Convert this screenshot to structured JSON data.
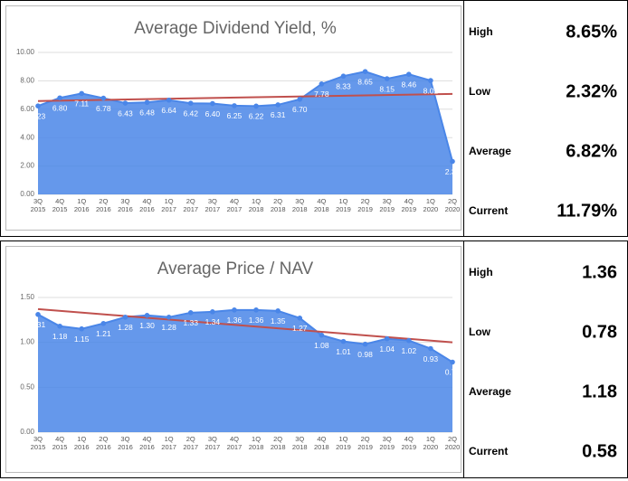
{
  "chart_data": [
    {
      "type": "area",
      "title": "Average Dividend Yield, %",
      "categories": [
        [
          "3Q",
          "2015"
        ],
        [
          "4Q",
          "2015"
        ],
        [
          "1Q",
          "2016"
        ],
        [
          "2Q",
          "2016"
        ],
        [
          "3Q",
          "2016"
        ],
        [
          "4Q",
          "2016"
        ],
        [
          "1Q",
          "2017"
        ],
        [
          "2Q",
          "2017"
        ],
        [
          "3Q",
          "2017"
        ],
        [
          "4Q",
          "2017"
        ],
        [
          "1Q",
          "2018"
        ],
        [
          "2Q",
          "2018"
        ],
        [
          "3Q",
          "2018"
        ],
        [
          "4Q",
          "2018"
        ],
        [
          "1Q",
          "2019"
        ],
        [
          "2Q",
          "2019"
        ],
        [
          "3Q",
          "2019"
        ],
        [
          "4Q",
          "2019"
        ],
        [
          "1Q",
          "2020"
        ],
        [
          "2Q",
          "2020"
        ]
      ],
      "values": [
        6.23,
        6.8,
        7.11,
        6.78,
        6.43,
        6.48,
        6.64,
        6.42,
        6.4,
        6.25,
        6.22,
        6.31,
        6.7,
        7.78,
        8.33,
        8.65,
        8.15,
        8.46,
        8.02,
        2.32
      ],
      "value_labels": [
        "6.23",
        "6.80",
        "7.11",
        "6.78",
        "6.43",
        "6.48",
        "6.64",
        "6.42",
        "6.40",
        "6.25",
        "6.22",
        "6.31",
        "6.70",
        "7.78",
        "8.33",
        "8.65",
        "8.15",
        "8.46",
        "8.02",
        "2.32"
      ],
      "color": "#4a86e8",
      "trendline": [
        6.58,
        7.08
      ],
      "trendline_color": "#c0504d",
      "ylim": [
        0,
        10
      ],
      "yticks": [
        {
          "value": 0,
          "label": "0.00"
        },
        {
          "value": 2,
          "label": "2.00"
        },
        {
          "value": 4,
          "label": "4.00"
        },
        {
          "value": 6,
          "label": "6.00"
        },
        {
          "value": 8,
          "label": "8.00"
        },
        {
          "value": 10,
          "label": "10.00"
        }
      ],
      "grid": true
    },
    {
      "type": "area",
      "title": "Average Price / NAV",
      "categories": [
        [
          "3Q",
          "2015"
        ],
        [
          "4Q",
          "2015"
        ],
        [
          "1Q",
          "2016"
        ],
        [
          "2Q",
          "2016"
        ],
        [
          "3Q",
          "2016"
        ],
        [
          "4Q",
          "2016"
        ],
        [
          "1Q",
          "2017"
        ],
        [
          "2Q",
          "2017"
        ],
        [
          "3Q",
          "2017"
        ],
        [
          "4Q",
          "2017"
        ],
        [
          "1Q",
          "2018"
        ],
        [
          "2Q",
          "2018"
        ],
        [
          "3Q",
          "2018"
        ],
        [
          "4Q",
          "2018"
        ],
        [
          "1Q",
          "2019"
        ],
        [
          "2Q",
          "2019"
        ],
        [
          "3Q",
          "2019"
        ],
        [
          "4Q",
          "2019"
        ],
        [
          "1Q",
          "2020"
        ],
        [
          "2Q",
          "2020"
        ]
      ],
      "values": [
        1.31,
        1.18,
        1.15,
        1.21,
        1.28,
        1.3,
        1.28,
        1.33,
        1.34,
        1.36,
        1.36,
        1.35,
        1.27,
        1.08,
        1.01,
        0.98,
        1.04,
        1.02,
        0.93,
        0.78
      ],
      "value_labels": [
        "1.31",
        "1.18",
        "1.15",
        "1.21",
        "1.28",
        "1.30",
        "1.28",
        "1.33",
        "1.34",
        "1.36",
        "1.36",
        "1.35",
        "1.27",
        "1.08",
        "1.01",
        "0.98",
        "1.04",
        "1.02",
        "0.93",
        "0.78"
      ],
      "color": "#4a86e8",
      "trendline": [
        1.37,
        1.0
      ],
      "trendline_color": "#c0504d",
      "ylim": [
        0,
        1.6
      ],
      "yticks": [
        {
          "value": 0,
          "label": "0.00"
        },
        {
          "value": 0.5,
          "label": "0.50"
        },
        {
          "value": 1,
          "label": "1.00"
        },
        {
          "value": 1.5,
          "label": "1.50"
        }
      ],
      "grid": true
    }
  ],
  "stats": [
    {
      "rows": [
        {
          "label": "High",
          "value": "8.65%"
        },
        {
          "label": "Low",
          "value": "2.32%"
        },
        {
          "label": "Average",
          "value": "6.82%"
        },
        {
          "label": "Current",
          "value": "11.79%"
        }
      ]
    },
    {
      "rows": [
        {
          "label": "High",
          "value": "1.36"
        },
        {
          "label": "Low",
          "value": "0.78"
        },
        {
          "label": "Average",
          "value": "1.18"
        },
        {
          "label": "Current",
          "value": "0.58"
        }
      ]
    }
  ]
}
